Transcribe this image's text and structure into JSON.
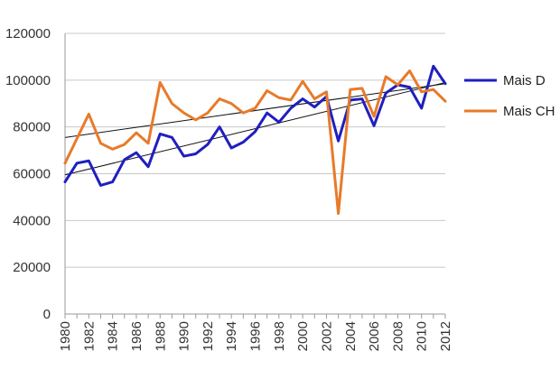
{
  "chart_data": {
    "type": "line",
    "title": "",
    "xlabel": "",
    "ylabel": "",
    "x": [
      1980,
      1981,
      1982,
      1983,
      1984,
      1985,
      1986,
      1987,
      1988,
      1989,
      1990,
      1991,
      1992,
      1993,
      1994,
      1995,
      1996,
      1997,
      1998,
      1999,
      2000,
      2001,
      2002,
      2003,
      2004,
      2005,
      2006,
      2007,
      2008,
      2009,
      2010,
      2011,
      2012
    ],
    "x_tick_labels": [
      "1980",
      "1982",
      "1984",
      "1986",
      "1988",
      "1990",
      "1992",
      "1994",
      "1996",
      "1998",
      "2000",
      "2002",
      "2004",
      "2006",
      "2008",
      "2010",
      "2012"
    ],
    "ylim": [
      0,
      120000
    ],
    "y_ticks": [
      0,
      20000,
      40000,
      60000,
      80000,
      100000,
      120000
    ],
    "y_tick_labels": [
      "0",
      "20000",
      "40000",
      "60000",
      "80000",
      "100000",
      "120000"
    ],
    "grid": "horizontal",
    "legend_position": "right",
    "series": [
      {
        "name": "Mais D",
        "color": "#1f1fbf",
        "values": [
          56500,
          64500,
          65500,
          55000,
          56500,
          66000,
          69000,
          63000,
          77000,
          75500,
          67500,
          68500,
          72500,
          80000,
          71000,
          73500,
          78000,
          86000,
          82000,
          88000,
          92000,
          88500,
          93000,
          74000,
          91500,
          92000,
          80500,
          94500,
          98000,
          97000,
          88000,
          106000,
          98500
        ],
        "trend": [
          59500,
          99000
        ]
      },
      {
        "name": "Mais CH",
        "color": "#e87a2a",
        "values": [
          64500,
          75000,
          85500,
          73000,
          70500,
          72500,
          77500,
          73000,
          99000,
          90000,
          86000,
          83000,
          86000,
          92000,
          90000,
          86000,
          88000,
          95500,
          92500,
          91500,
          99500,
          92000,
          95000,
          43000,
          96000,
          96500,
          84500,
          101500,
          98000,
          104000,
          95000,
          96000,
          91000
        ],
        "trend": [
          75500,
          98500
        ]
      }
    ],
    "trend_color": "#111111"
  }
}
